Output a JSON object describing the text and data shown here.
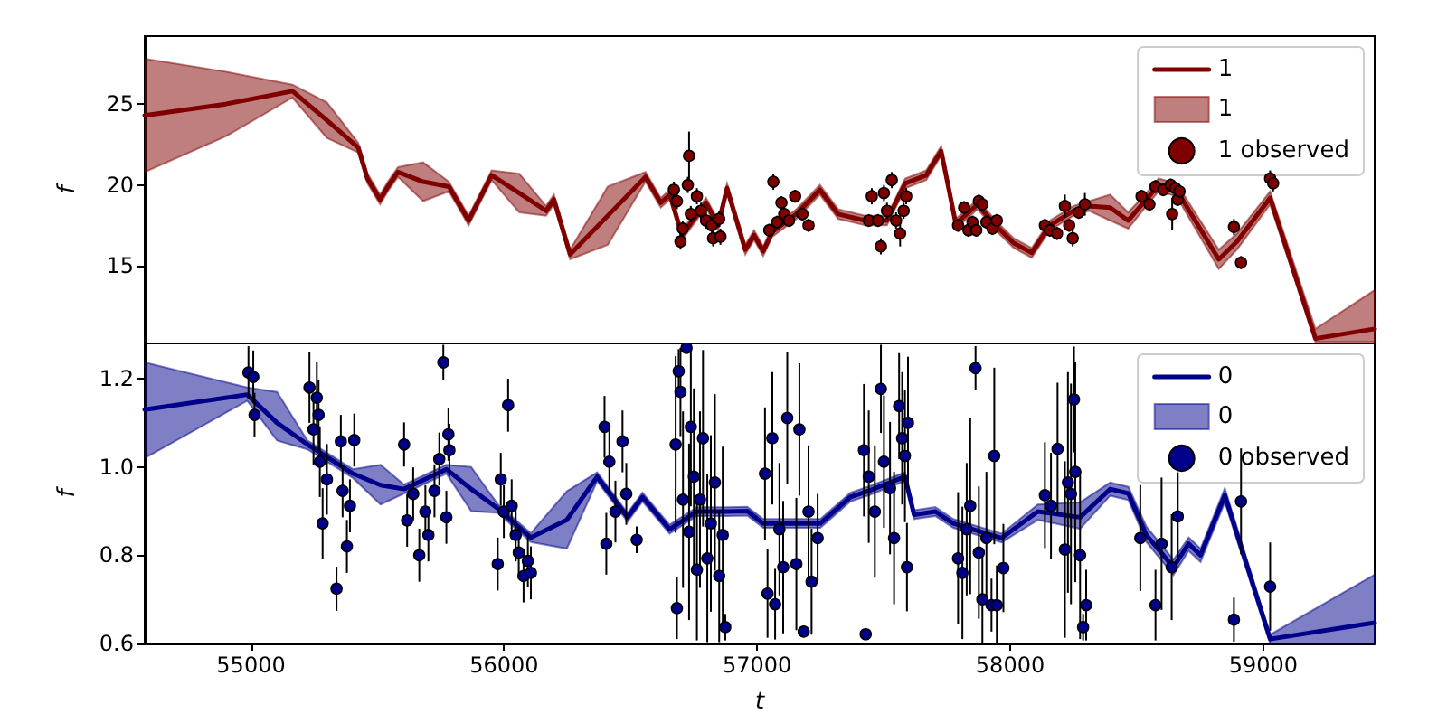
{
  "chart_data": [
    {
      "type": "line",
      "ylabel": "f",
      "xlim": [
        54580,
        59440
      ],
      "xticks": [
        55000,
        56000,
        57000,
        58000,
        59000
      ],
      "ylim": [
        10.2,
        29.2
      ],
      "yticks": [
        15,
        20,
        25
      ],
      "tick_labels": "y",
      "grid": false,
      "legend": "top right",
      "series": [
        {
          "name": "1",
          "type": "line",
          "marker": "none",
          "color": "#800000",
          "x": [
            54580,
            54900,
            55164,
            55300,
            55424,
            55460,
            55510,
            55545,
            55581,
            55680,
            55782,
            55860,
            55951,
            56060,
            56166,
            56197,
            56261,
            56410,
            56559,
            56619,
            56655,
            56703,
            56798,
            56846,
            56881,
            56953,
            56988,
            57024,
            57060,
            57155,
            57248,
            57320,
            57427,
            57513,
            57585,
            57668,
            57727,
            57785,
            57871,
            57942,
            58014,
            58085,
            58157,
            58250,
            58312,
            58395,
            58466,
            58538,
            58586,
            58657,
            58824,
            58896,
            59027,
            59206,
            59440
          ],
          "values": [
            24.3,
            25.0,
            25.8,
            24.0,
            22.3,
            20.4,
            19.1,
            20.0,
            20.8,
            20.2,
            19.9,
            17.8,
            20.6,
            19.5,
            18.4,
            19.1,
            15.7,
            18.1,
            20.5,
            18.9,
            19.4,
            16.9,
            18.9,
            17.5,
            19.8,
            16.0,
            16.9,
            15.9,
            17.1,
            18.2,
            19.7,
            18.2,
            17.8,
            17.8,
            20.1,
            20.6,
            22.1,
            17.6,
            18.8,
            17.5,
            16.4,
            15.8,
            17.5,
            18.4,
            18.7,
            18.6,
            17.8,
            19.1,
            20.0,
            19.7,
            15.4,
            16.5,
            19.2,
            10.5,
            11.1
          ],
          "lower": [
            20.8,
            23.0,
            25.4,
            22.9,
            22.0,
            20.1,
            18.8,
            19.7,
            20.5,
            19.0,
            19.6,
            17.5,
            20.3,
            18.3,
            18.1,
            18.8,
            15.4,
            16.3,
            20.2,
            18.6,
            19.1,
            16.6,
            18.6,
            17.2,
            19.5,
            15.7,
            16.6,
            15.6,
            16.8,
            17.9,
            19.4,
            17.9,
            17.5,
            17.5,
            19.8,
            20.3,
            21.8,
            17.3,
            18.5,
            17.2,
            16.1,
            15.5,
            17.2,
            18.1,
            18.4,
            17.8,
            17.3,
            18.7,
            19.6,
            19.3,
            14.8,
            16.0,
            18.8,
            10.3,
            10.3
          ],
          "upper": [
            27.8,
            27.0,
            26.2,
            25.1,
            22.6,
            20.7,
            19.4,
            20.3,
            21.1,
            21.4,
            20.2,
            18.1,
            20.9,
            20.7,
            18.7,
            19.4,
            16.0,
            19.9,
            20.8,
            19.2,
            19.7,
            17.2,
            19.2,
            17.8,
            20.1,
            16.3,
            17.2,
            16.2,
            17.4,
            18.5,
            20.0,
            18.5,
            18.1,
            18.1,
            20.4,
            20.9,
            22.4,
            17.9,
            19.1,
            17.8,
            16.7,
            16.1,
            17.8,
            18.7,
            19.0,
            19.4,
            18.3,
            19.5,
            20.4,
            20.1,
            16.0,
            17.0,
            19.6,
            11.1,
            13.5
          ]
        },
        {
          "name": "1 observed",
          "type": "scatter",
          "marker": "circle",
          "color": "#800000",
          "x": [
            56671,
            56683,
            56697,
            56706,
            56726,
            56731,
            56738,
            56762,
            56778,
            56798,
            56821,
            56826,
            56850,
            56855,
            57048,
            57064,
            57079,
            57096,
            57107,
            57126,
            57150,
            57179,
            57203,
            57441,
            57453,
            57477,
            57489,
            57501,
            57513,
            57532,
            57549,
            57565,
            57579,
            57589,
            57794,
            57818,
            57835,
            57851,
            57866,
            57876,
            57890,
            57906,
            57930,
            57947,
            58137,
            58157,
            58185,
            58216,
            58233,
            58247,
            58271,
            58295,
            58519,
            58550,
            58574,
            58605,
            58634,
            58640,
            58652,
            58662,
            58669,
            58884,
            58912,
            59027,
            59039
          ],
          "values": [
            19.7,
            19.0,
            16.5,
            17.3,
            20.0,
            21.8,
            18.2,
            19.3,
            18.4,
            17.8,
            17.5,
            16.7,
            17.9,
            16.8,
            17.2,
            20.2,
            17.7,
            18.9,
            18.2,
            17.8,
            19.3,
            18.2,
            17.5,
            17.8,
            19.3,
            17.8,
            16.2,
            19.5,
            18.4,
            20.3,
            17.8,
            17.0,
            18.4,
            19.3,
            17.5,
            18.6,
            17.2,
            17.7,
            17.2,
            19.0,
            18.8,
            17.7,
            17.3,
            17.8,
            17.5,
            17.2,
            17.0,
            18.7,
            17.5,
            16.7,
            18.3,
            18.8,
            19.3,
            18.8,
            19.9,
            19.7,
            20.0,
            18.2,
            19.8,
            19.1,
            19.6,
            17.4,
            15.2,
            20.4,
            20.1
          ],
          "errors": [
            0.5,
            0.5,
            0.5,
            0.5,
            0.5,
            1.5,
            0.5,
            0.5,
            0.5,
            0.5,
            0.5,
            0.5,
            0.5,
            0.5,
            0.4,
            0.5,
            0.4,
            0.4,
            0.4,
            0.4,
            0.4,
            0.4,
            0.4,
            0.4,
            0.5,
            0.4,
            0.5,
            0.5,
            0.5,
            0.5,
            0.5,
            0.8,
            0.5,
            0.5,
            0.4,
            0.4,
            0.4,
            0.4,
            0.4,
            0.4,
            0.4,
            0.4,
            0.4,
            0.4,
            0.4,
            0.4,
            0.4,
            0.7,
            0.4,
            0.5,
            0.4,
            0.7,
            0.4,
            0.4,
            0.4,
            0.4,
            0.4,
            1.0,
            0.4,
            0.4,
            0.4,
            0.5,
            0.4,
            0.5,
            0.5
          ]
        }
      ]
    },
    {
      "type": "line",
      "xlabel": "t",
      "ylabel": "f",
      "xlim": [
        54580,
        59440
      ],
      "xticks": [
        55000,
        56000,
        57000,
        58000,
        59000
      ],
      "ylim": [
        0.6,
        1.28
      ],
      "yticks": [
        0.6,
        0.8,
        {
          "value": 1,
          "label": "1.0"
        },
        1.2
      ],
      "grid": false,
      "legend": "top right",
      "series": [
        {
          "name": "0",
          "type": "line",
          "marker": "none",
          "color": "#00008b",
          "x": [
            54580,
            54985,
            55103,
            55223,
            55403,
            55512,
            55605,
            55772,
            55870,
            55975,
            56106,
            56248,
            56368,
            56488,
            56547,
            56654,
            56762,
            56881,
            56961,
            57024,
            57250,
            57369,
            57441,
            57584,
            57620,
            57704,
            57775,
            57966,
            58109,
            58276,
            58395,
            58467,
            58538,
            58645,
            58705,
            58752,
            58848,
            59027,
            59440
          ],
          "values": [
            1.13,
            1.164,
            1.1,
            1.051,
            0.985,
            0.959,
            0.95,
            0.995,
            0.95,
            0.906,
            0.84,
            0.88,
            0.978,
            0.886,
            0.932,
            0.859,
            0.899,
            0.899,
            0.9,
            0.872,
            0.872,
            0.932,
            0.946,
            0.978,
            0.892,
            0.899,
            0.872,
            0.839,
            0.899,
            0.886,
            0.95,
            0.94,
            0.846,
            0.773,
            0.826,
            0.8,
            0.936,
            0.61,
            0.647
          ],
          "lower": [
            1.02,
            1.15,
            1.06,
            1.04,
            0.975,
            0.915,
            0.94,
            0.985,
            0.9,
            0.896,
            0.83,
            0.815,
            0.968,
            0.876,
            0.922,
            0.849,
            0.889,
            0.889,
            0.89,
            0.862,
            0.862,
            0.922,
            0.936,
            0.968,
            0.882,
            0.889,
            0.862,
            0.829,
            0.88,
            0.86,
            0.935,
            0.925,
            0.83,
            0.755,
            0.81,
            0.785,
            0.92,
            0.6,
            0.6
          ],
          "upper": [
            1.237,
            1.18,
            1.17,
            1.06,
            0.995,
            1.005,
            0.96,
            1.005,
            1.0,
            0.916,
            0.85,
            0.945,
            0.988,
            0.896,
            0.942,
            0.869,
            0.909,
            0.909,
            0.91,
            0.882,
            0.882,
            0.942,
            0.956,
            0.988,
            0.902,
            0.909,
            0.882,
            0.849,
            0.915,
            0.92,
            0.965,
            0.955,
            0.865,
            0.79,
            0.84,
            0.815,
            0.952,
            0.62,
            0.756
          ]
        },
        {
          "name": "0 observed",
          "type": "scatter",
          "marker": "circle",
          "color": "#00008b",
          "x": [
            54990,
            55009,
            55014,
            55231,
            55247,
            55260,
            55267,
            55272,
            55283,
            55300,
            55338,
            55355,
            55362,
            55379,
            55391,
            55408,
            55605,
            55617,
            55641,
            55665,
            55689,
            55701,
            55725,
            55744,
            55760,
            55772,
            55780,
            55784,
            55975,
            55987,
            55999,
            56016,
            56030,
            56046,
            56058,
            56077,
            56094,
            56106,
            56397,
            56404,
            56416,
            56440,
            56468,
            56483,
            56524,
            56678,
            56683,
            56690,
            56697,
            56707,
            56721,
            56731,
            56738,
            56750,
            56762,
            56774,
            56786,
            56803,
            56817,
            56833,
            56850,
            56864,
            56874,
            57031,
            57041,
            57060,
            57071,
            57088,
            57103,
            57119,
            57155,
            57167,
            57184,
            57203,
            57215,
            57239,
            57422,
            57429,
            57441,
            57465,
            57489,
            57501,
            57525,
            57541,
            57561,
            57573,
            57584,
            57592,
            57596,
            57794,
            57811,
            57828,
            57842,
            57863,
            57876,
            57890,
            57906,
            57926,
            57937,
            57947,
            57973,
            58137,
            58161,
            58187,
            58216,
            58228,
            58240,
            58252,
            58257,
            58276,
            58288,
            58300,
            58514,
            58574,
            58598,
            58638,
            58662,
            58884,
            58912,
            59027
          ],
          "values": [
            1.214,
            1.204,
            1.118,
            1.18,
            1.085,
            1.157,
            1.118,
            1.012,
            0.872,
            0.972,
            0.724,
            1.058,
            0.946,
            0.82,
            0.912,
            1.061,
            1.051,
            0.879,
            0.939,
            0.8,
            0.899,
            0.846,
            0.946,
            1.018,
            1.237,
            0.886,
            1.074,
            1.038,
            0.78,
            0.972,
            0.899,
            1.14,
            0.912,
            0.846,
            0.806,
            0.753,
            0.787,
            0.76,
            1.091,
            0.826,
            1.012,
            0.899,
            1.058,
            0.939,
            0.835,
            1.051,
            0.68,
            1.217,
            1.17,
            0.926,
            1.27,
            0.853,
            1.091,
            0.978,
            0.767,
            0.926,
            1.065,
            0.793,
            0.872,
            0.965,
            0.753,
            0.846,
            0.637,
            0.985,
            0.713,
            1.065,
            0.689,
            0.859,
            0.773,
            1.111,
            0.78,
            1.085,
            0.627,
            0.899,
            0.74,
            0.839,
            1.038,
            0.621,
            0.978,
            0.899,
            1.177,
            1.012,
            0.952,
            0.839,
            1.138,
            1.065,
            1.025,
            0.773,
            1.1,
            0.793,
            0.76,
            0.859,
            0.912,
            1.224,
            0.806,
            0.7,
            0.839,
            0.687,
            1.025,
            0.687,
            0.771,
            0.936,
            0.912,
            1.041,
            0.813,
            0.965,
            0.939,
            1.153,
            0.989,
            0.8,
            0.637,
            0.687,
            0.839,
            0.687,
            0.826,
            0.773,
            0.888,
            0.654,
            0.922,
            0.729
          ],
          "errors": [
            0.06,
            0.06,
            0.05,
            0.08,
            0.08,
            0.08,
            0.08,
            0.08,
            0.08,
            0.08,
            0.05,
            0.06,
            0.06,
            0.06,
            0.06,
            0.06,
            0.05,
            0.06,
            0.06,
            0.06,
            0.06,
            0.06,
            0.06,
            0.06,
            0.04,
            0.06,
            0.06,
            0.06,
            0.06,
            0.06,
            0.06,
            0.06,
            0.06,
            0.06,
            0.06,
            0.06,
            0.06,
            0.06,
            0.07,
            0.07,
            0.07,
            0.07,
            0.07,
            0.07,
            0.03,
            0.2,
            0.07,
            0.05,
            0.1,
            0.2,
            null,
            0.2,
            0.18,
            0.2,
            0.16,
            0.2,
            0.2,
            0.19,
            0.2,
            0.2,
            0.15,
            0.2,
            0.03,
            0.15,
            0.1,
            0.15,
            0.08,
            0.15,
            0.15,
            0.15,
            0.15,
            0.15,
            null,
            0.15,
            0.12,
            0.1,
            0.15,
            null,
            0.15,
            0.15,
            0.1,
            0.15,
            0.15,
            0.15,
            0.12,
            0.15,
            0.15,
            0.1,
            0.15,
            0.15,
            0.15,
            0.15,
            0.2,
            0.05,
            0.15,
            0.1,
            0.15,
            0.06,
            0.2,
            0.09,
            0.1,
            0.12,
            0.12,
            0.15,
            0.2,
            0.25,
            0.25,
            0.12,
            0.25,
            0.19,
            0.03,
            0.08,
            0.12,
            0.08,
            0.15,
            0.12,
            0.1,
            0.05,
            0.12,
            0.1
          ]
        }
      ]
    }
  ]
}
